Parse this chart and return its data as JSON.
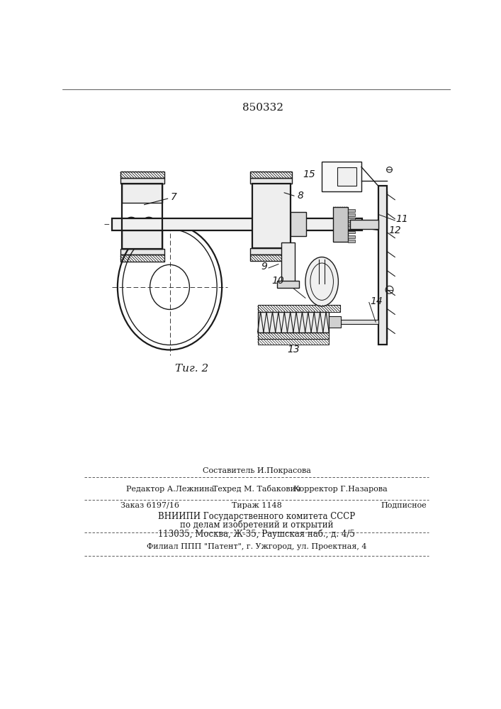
{
  "title": "850332",
  "fig_label": "Τиг. 2",
  "background_color": "#ffffff",
  "line_color": "#1a1a1a",
  "footer_sestavitel": "Составитель И.Покрасова",
  "footer_redaktor": "Редактор А.Лежнина",
  "footer_tehred": "Техред М. Табакович",
  "footer_korrektor": "Корректор Г.Назарова",
  "footer_zakaz": "Заказ 6197/16",
  "footer_tirazh": "Тираж 1148",
  "footer_podpisnoe": "Подписное",
  "footer_vniip1": "ВНИИПИ Государственного комитета СССР",
  "footer_vniip2": "по делам изобретений и открытий",
  "footer_addr": "113035, Москва, Ж-35, Раушская наб., д. 4/5",
  "footer_filial": "Филиал ППП \"Патент\", г. Ужгород, ул. Проектная, 4"
}
